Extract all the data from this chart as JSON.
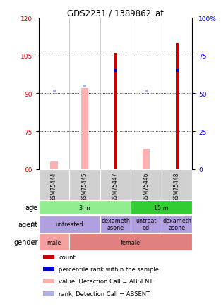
{
  "title": "GDS2231 / 1389862_at",
  "samples": [
    "GSM75444",
    "GSM75445",
    "GSM75447",
    "GSM75446",
    "GSM75448"
  ],
  "ylim_left": [
    60,
    120
  ],
  "ylim_right": [
    0,
    100
  ],
  "yticks_left": [
    60,
    75,
    90,
    105,
    120
  ],
  "yticks_right": [
    0,
    25,
    50,
    75,
    100
  ],
  "count_values": [
    null,
    null,
    106,
    null,
    110
  ],
  "rank_values": [
    null,
    null,
    65,
    null,
    65
  ],
  "absent_value": [
    63,
    92,
    null,
    68,
    null
  ],
  "absent_rank": [
    91,
    93,
    null,
    91,
    null
  ],
  "age_groups": [
    {
      "label": "3 m",
      "cols": [
        0,
        1,
        2
      ],
      "color": "#90ee90"
    },
    {
      "label": "15 m",
      "cols": [
        3,
        4
      ],
      "color": "#32cd32"
    }
  ],
  "agent_groups": [
    {
      "label": "untreated",
      "cols": [
        0,
        1
      ],
      "color": "#b0a0e0"
    },
    {
      "label": "dexameth\nasone",
      "cols": [
        2
      ],
      "color": "#b0a0e0"
    },
    {
      "label": "untreat\ned",
      "cols": [
        3
      ],
      "color": "#b0a0e0"
    },
    {
      "label": "dexameth\nasone",
      "cols": [
        4
      ],
      "color": "#b0a0e0"
    }
  ],
  "gender_groups": [
    {
      "label": "male",
      "cols": [
        0
      ],
      "color": "#f4a0a0"
    },
    {
      "label": "female",
      "cols": [
        1,
        2,
        3,
        4
      ],
      "color": "#e08080"
    }
  ],
  "legend_items": [
    {
      "label": "count",
      "color": "#cc0000"
    },
    {
      "label": "percentile rank within the sample",
      "color": "#0000cc"
    },
    {
      "label": "value, Detection Call = ABSENT",
      "color": "#ffb0b0"
    },
    {
      "label": "rank, Detection Call = ABSENT",
      "color": "#b0b0e0"
    }
  ],
  "bg_color": "#ffffff",
  "tick_color_left": "#cc0000",
  "tick_color_right": "#0000cc",
  "count_color": "#cc0000",
  "rank_color": "#0000cc",
  "absent_val_color": "#ffb0b0",
  "absent_rank_color": "#b0b0e0"
}
